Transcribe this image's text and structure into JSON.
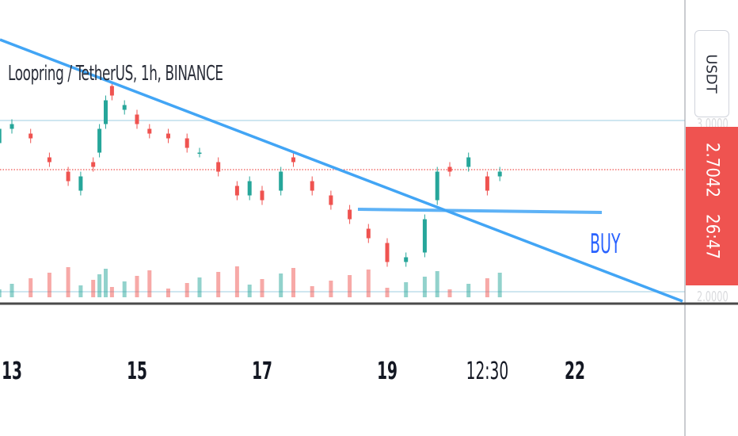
{
  "title": "Loopring / TetherUS, 1h, BINANCE",
  "currency": "USDT",
  "price": {
    "last": "2.7042",
    "countdown": "26:47"
  },
  "annotation": {
    "text": "BUY"
  },
  "x_ticks": [
    {
      "label": "13",
      "bold": true
    },
    {
      "label": "15",
      "bold": true
    },
    {
      "label": "17",
      "bold": true
    },
    {
      "label": "19",
      "bold": true
    },
    {
      "label": "12:30",
      "bold": false
    },
    {
      "label": "22",
      "bold": true
    }
  ],
  "colors": {
    "up": "#26a69a",
    "down": "#ef5350",
    "trendline": "#42a5f5",
    "price_line": "#ef5350",
    "buy": "#2962ff"
  },
  "chart_data": {
    "type": "candlestick",
    "title": "Loopring / TetherUS, 1h, BINANCE",
    "quote_currency": "USDT",
    "last_price": 2.7042,
    "horizontal_levels": [
      2.8,
      2.62,
      2.47
    ],
    "support_level": 2.59,
    "trendline_from": {
      "x": 12.7,
      "y": 3.12
    },
    "trendline_to": {
      "x": 23.6,
      "y": 2.44
    },
    "candles": [
      [
        12.8,
        2.76,
        2.79
      ],
      [
        13.0,
        2.79,
        2.8
      ],
      [
        13.3,
        2.78,
        2.77
      ],
      [
        13.6,
        2.73,
        2.72
      ],
      [
        13.9,
        2.7,
        2.68
      ],
      [
        14.1,
        2.66,
        2.69
      ],
      [
        14.3,
        2.72,
        2.71
      ],
      [
        14.4,
        2.74,
        2.79
      ],
      [
        14.5,
        2.8,
        2.85
      ],
      [
        14.6,
        2.88,
        2.86
      ],
      [
        14.8,
        2.83,
        2.84
      ],
      [
        15.0,
        2.82,
        2.8
      ],
      [
        15.2,
        2.79,
        2.78
      ],
      [
        15.5,
        2.78,
        2.77
      ],
      [
        15.8,
        2.77,
        2.75
      ],
      [
        16.0,
        2.74,
        2.74
      ],
      [
        16.3,
        2.72,
        2.7
      ],
      [
        16.6,
        2.67,
        2.65
      ],
      [
        16.8,
        2.65,
        2.68
      ],
      [
        17.0,
        2.66,
        2.64
      ],
      [
        17.3,
        2.66,
        2.7
      ],
      [
        17.5,
        2.73,
        2.72
      ],
      [
        17.8,
        2.68,
        2.66
      ],
      [
        18.1,
        2.65,
        2.63
      ],
      [
        18.4,
        2.62,
        2.6
      ],
      [
        18.7,
        2.58,
        2.56
      ],
      [
        19.0,
        2.55,
        2.51
      ],
      [
        19.3,
        2.51,
        2.52
      ],
      [
        19.6,
        2.53,
        2.6
      ],
      [
        19.8,
        2.64,
        2.7
      ],
      [
        20.0,
        2.71,
        2.7
      ],
      [
        20.3,
        2.71,
        2.73
      ],
      [
        20.6,
        2.69,
        2.66
      ],
      [
        20.8,
        2.69,
        2.7
      ]
    ],
    "x_ticks": [
      "13",
      "15",
      "17",
      "19",
      "12:30",
      "22"
    ]
  }
}
